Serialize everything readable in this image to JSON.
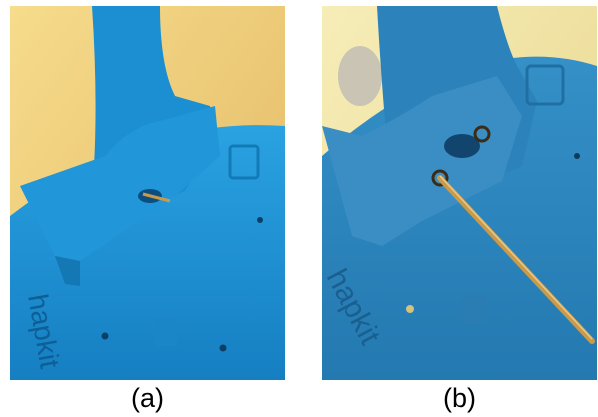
{
  "figure": {
    "panel_a": {
      "caption": "(a)",
      "engraving": "hapkit"
    },
    "panel_b": {
      "caption": "(b)",
      "engraving": "hapkit"
    }
  },
  "colors": {
    "background": "#ffffff",
    "wall_a": "#efcf7e",
    "plastic_a": "#1c93d6",
    "wall_b": "#f0e6a8",
    "plastic_b": "#2b86bf",
    "metal": "#c99a4a"
  }
}
